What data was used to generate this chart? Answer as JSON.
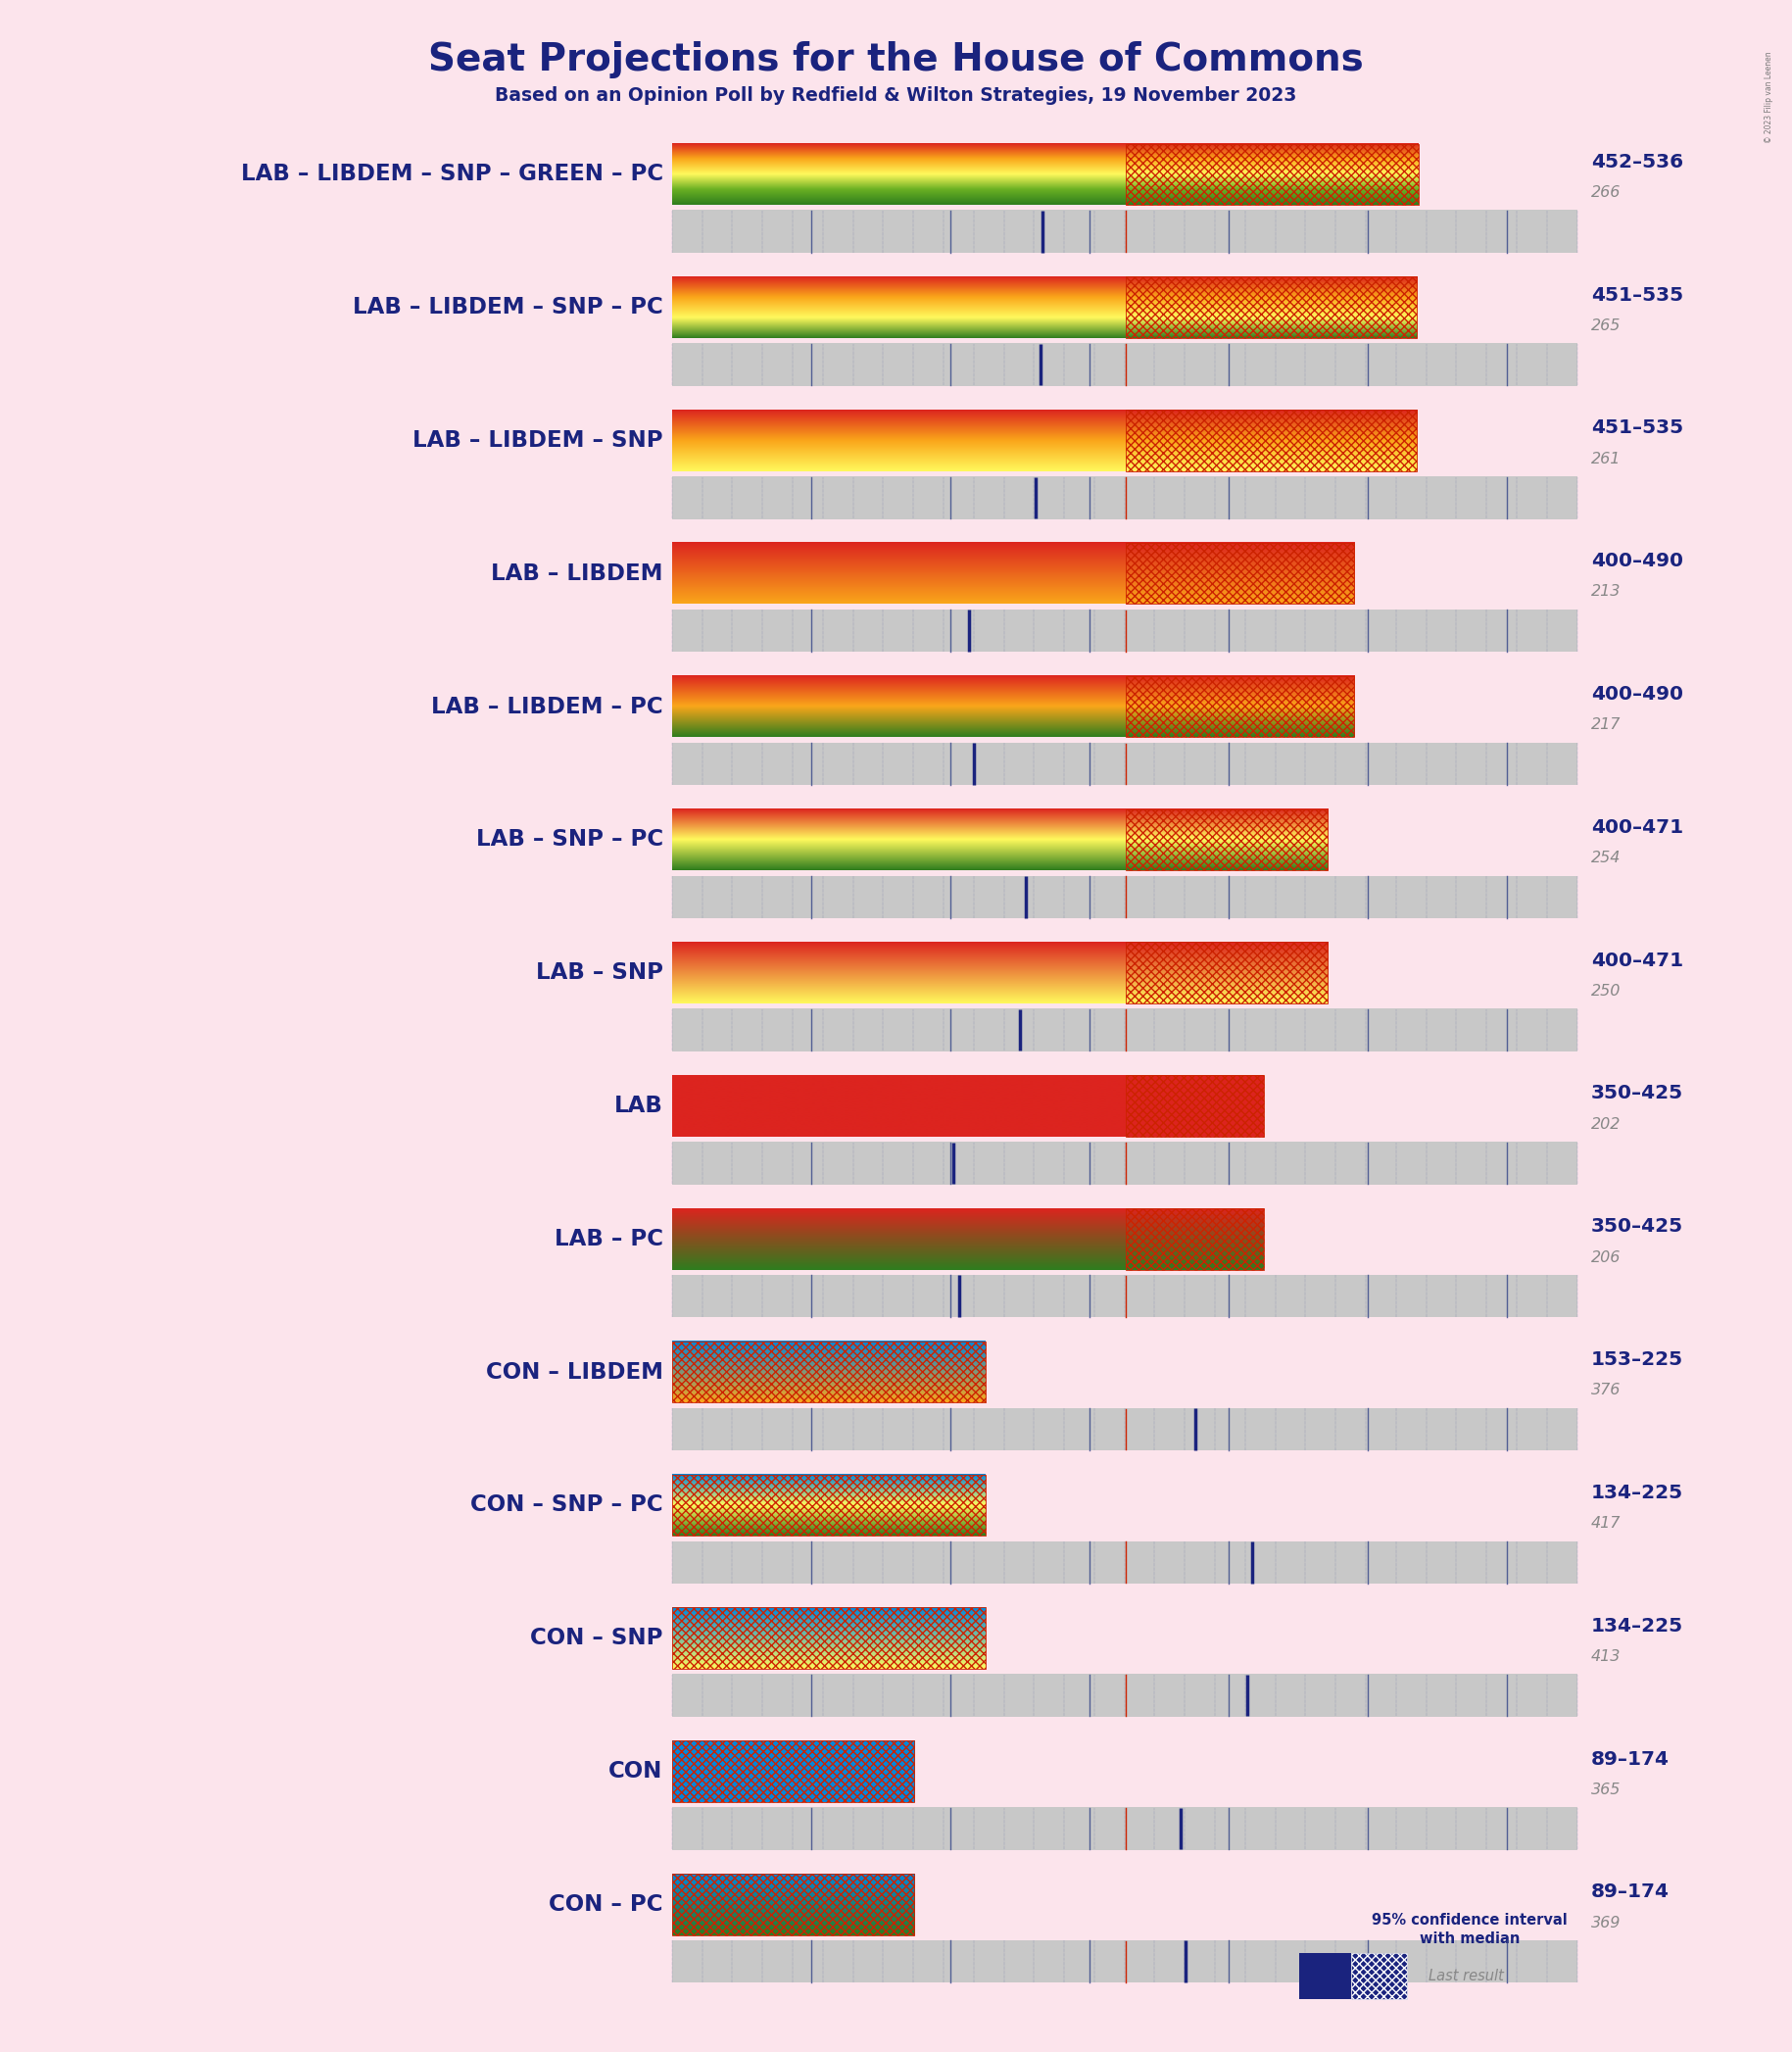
{
  "title": "Seat Projections for the House of Commons",
  "subtitle": "Based on an Opinion Poll by Redfield & Wilton Strategies, 19 November 2023",
  "bg_color": "#fce4ec",
  "title_color": "#1a237e",
  "label_color": "#1a237e",
  "ci_gray": "#c8c8c8",
  "dot_color": "#1a237e",
  "hatch_color": "#cc2200",
  "median_line_color": "#333355",
  "majority_line_color": "#cc2200",
  "range_label_color": "#1a237e",
  "median_label_color": "#888888",
  "copyright": "© 2023 Filip van Leenen",
  "majority": 326,
  "x_min": 0,
  "x_max": 650,
  "party_colors": {
    "lab": "#dc241f",
    "libdem": "#faa61a",
    "snp": "#fff95d",
    "green": "#6ab023",
    "pc": "#2e7d1e",
    "con": "#0087dc"
  },
  "coalitions": [
    {
      "name": "LAB – LIBDEM – SNP – GREEN – PC",
      "type": "lab",
      "parties": [
        "lab",
        "libdem",
        "snp",
        "green",
        "pc"
      ],
      "ci_low": 452,
      "ci_high": 536,
      "median": 266
    },
    {
      "name": "LAB – LIBDEM – SNP – PC",
      "type": "lab",
      "parties": [
        "lab",
        "libdem",
        "snp",
        "pc"
      ],
      "ci_low": 451,
      "ci_high": 535,
      "median": 265
    },
    {
      "name": "LAB – LIBDEM – SNP",
      "type": "lab",
      "parties": [
        "lab",
        "libdem",
        "snp"
      ],
      "ci_low": 451,
      "ci_high": 535,
      "median": 261
    },
    {
      "name": "LAB – LIBDEM",
      "type": "lab",
      "parties": [
        "lab",
        "libdem"
      ],
      "ci_low": 400,
      "ci_high": 490,
      "median": 213
    },
    {
      "name": "LAB – LIBDEM – PC",
      "type": "lab",
      "parties": [
        "lab",
        "libdem",
        "pc"
      ],
      "ci_low": 400,
      "ci_high": 490,
      "median": 217
    },
    {
      "name": "LAB – SNP – PC",
      "type": "lab",
      "parties": [
        "lab",
        "snp",
        "pc"
      ],
      "ci_low": 400,
      "ci_high": 471,
      "median": 254
    },
    {
      "name": "LAB – SNP",
      "type": "lab",
      "parties": [
        "lab",
        "snp"
      ],
      "ci_low": 400,
      "ci_high": 471,
      "median": 250
    },
    {
      "name": "LAB",
      "type": "lab",
      "parties": [
        "lab"
      ],
      "ci_low": 350,
      "ci_high": 425,
      "median": 202
    },
    {
      "name": "LAB – PC",
      "type": "lab",
      "parties": [
        "lab",
        "pc"
      ],
      "ci_low": 350,
      "ci_high": 425,
      "median": 206
    },
    {
      "name": "CON – LIBDEM",
      "type": "con",
      "parties": [
        "con",
        "libdem"
      ],
      "ci_low": 153,
      "ci_high": 225,
      "median": 376
    },
    {
      "name": "CON – SNP – PC",
      "type": "con",
      "parties": [
        "con",
        "snp",
        "pc"
      ],
      "ci_low": 134,
      "ci_high": 225,
      "median": 417
    },
    {
      "name": "CON – SNP",
      "type": "con",
      "parties": [
        "con",
        "snp"
      ],
      "ci_low": 134,
      "ci_high": 225,
      "median": 413
    },
    {
      "name": "CON",
      "type": "con",
      "parties": [
        "con"
      ],
      "ci_low": 89,
      "ci_high": 174,
      "median": 365
    },
    {
      "name": "CON – PC",
      "type": "con",
      "parties": [
        "con",
        "pc"
      ],
      "ci_low": 89,
      "ci_high": 174,
      "median": 369
    }
  ]
}
